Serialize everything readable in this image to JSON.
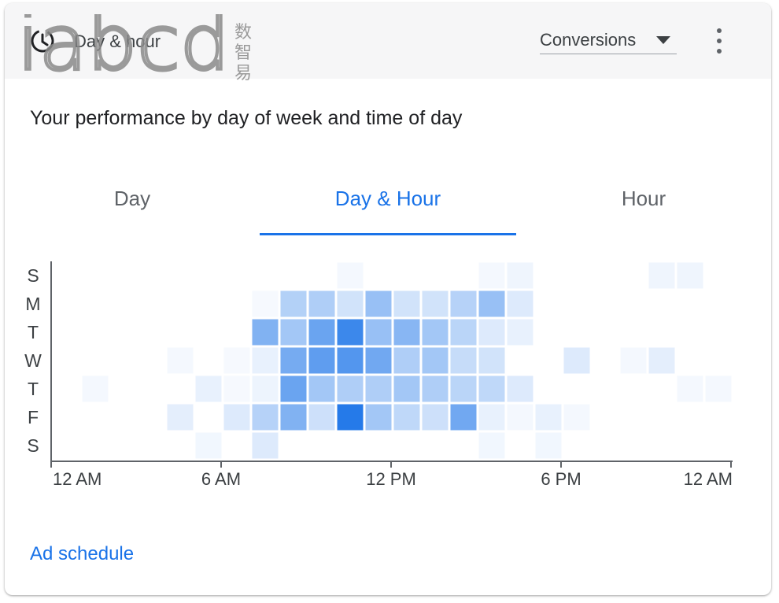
{
  "header": {
    "title": "Day & hour",
    "icon": "schedule-icon",
    "metric_select": {
      "value": "Conversions"
    },
    "more_icon": "more-vert-icon"
  },
  "watermark": {
    "text": "iabcd",
    "chars": [
      "数",
      "智",
      "易"
    ]
  },
  "subtitle": "Your performance by day of week and time of day",
  "tabs": [
    {
      "label": "Day",
      "active": false
    },
    {
      "label": "Day & Hour",
      "active": true
    },
    {
      "label": "Hour",
      "active": false
    }
  ],
  "chart_data": {
    "type": "heatmap",
    "title": "",
    "xlabel": "",
    "ylabel": "",
    "y_categories": [
      "S",
      "M",
      "T",
      "W",
      "T",
      "F",
      "S"
    ],
    "x_categories": [
      "0",
      "1",
      "2",
      "3",
      "4",
      "5",
      "6",
      "7",
      "8",
      "9",
      "10",
      "11",
      "12",
      "13",
      "14",
      "15",
      "16",
      "17",
      "18",
      "19",
      "20",
      "21",
      "22",
      "23"
    ],
    "x_tick_labels": [
      "12 AM",
      "6 AM",
      "12 PM",
      "6 PM",
      "12 AM"
    ],
    "x_tick_hours": [
      0,
      6,
      12,
      18,
      24
    ],
    "color_scale": {
      "low": "#ffffff",
      "high": "#1a73e8"
    },
    "values": [
      [
        0,
        0,
        0,
        0,
        0,
        0,
        0,
        0,
        0,
        0,
        0.05,
        0,
        0,
        0,
        0,
        0.05,
        0.07,
        0,
        0,
        0,
        0,
        0.07,
        0.07,
        0
      ],
      [
        0,
        0,
        0,
        0,
        0,
        0,
        0,
        0.04,
        0.33,
        0.35,
        0.2,
        0.45,
        0.2,
        0.2,
        0.32,
        0.45,
        0.15,
        0,
        0,
        0,
        0,
        0,
        0,
        0
      ],
      [
        0,
        0,
        0,
        0,
        0,
        0,
        0,
        0.55,
        0.4,
        0.65,
        0.85,
        0.45,
        0.52,
        0.4,
        0.3,
        0.15,
        0.1,
        0,
        0,
        0,
        0,
        0,
        0,
        0
      ],
      [
        0,
        0,
        0,
        0,
        0.05,
        0,
        0.04,
        0.1,
        0.6,
        0.7,
        0.75,
        0.62,
        0.35,
        0.4,
        0.25,
        0.2,
        0,
        0,
        0.15,
        0,
        0.05,
        0.12,
        0,
        0
      ],
      [
        0,
        0.05,
        0,
        0,
        0,
        0.1,
        0.04,
        0.08,
        0.65,
        0.4,
        0.35,
        0.35,
        0.4,
        0.35,
        0.3,
        0.28,
        0.15,
        0,
        0,
        0,
        0,
        0,
        0.05,
        0.05
      ],
      [
        0,
        0,
        0,
        0,
        0.12,
        0,
        0.15,
        0.32,
        0.55,
        0.22,
        0.95,
        0.4,
        0.28,
        0.22,
        0.62,
        0.1,
        0.05,
        0.1,
        0.05,
        0,
        0,
        0,
        0,
        0
      ],
      [
        0,
        0,
        0,
        0,
        0,
        0.06,
        0,
        0.15,
        0,
        0,
        0,
        0,
        0,
        0,
        0,
        0.06,
        0,
        0.06,
        0,
        0,
        0,
        0,
        0,
        0
      ]
    ]
  },
  "footer": {
    "ad_schedule_link": "Ad schedule"
  }
}
